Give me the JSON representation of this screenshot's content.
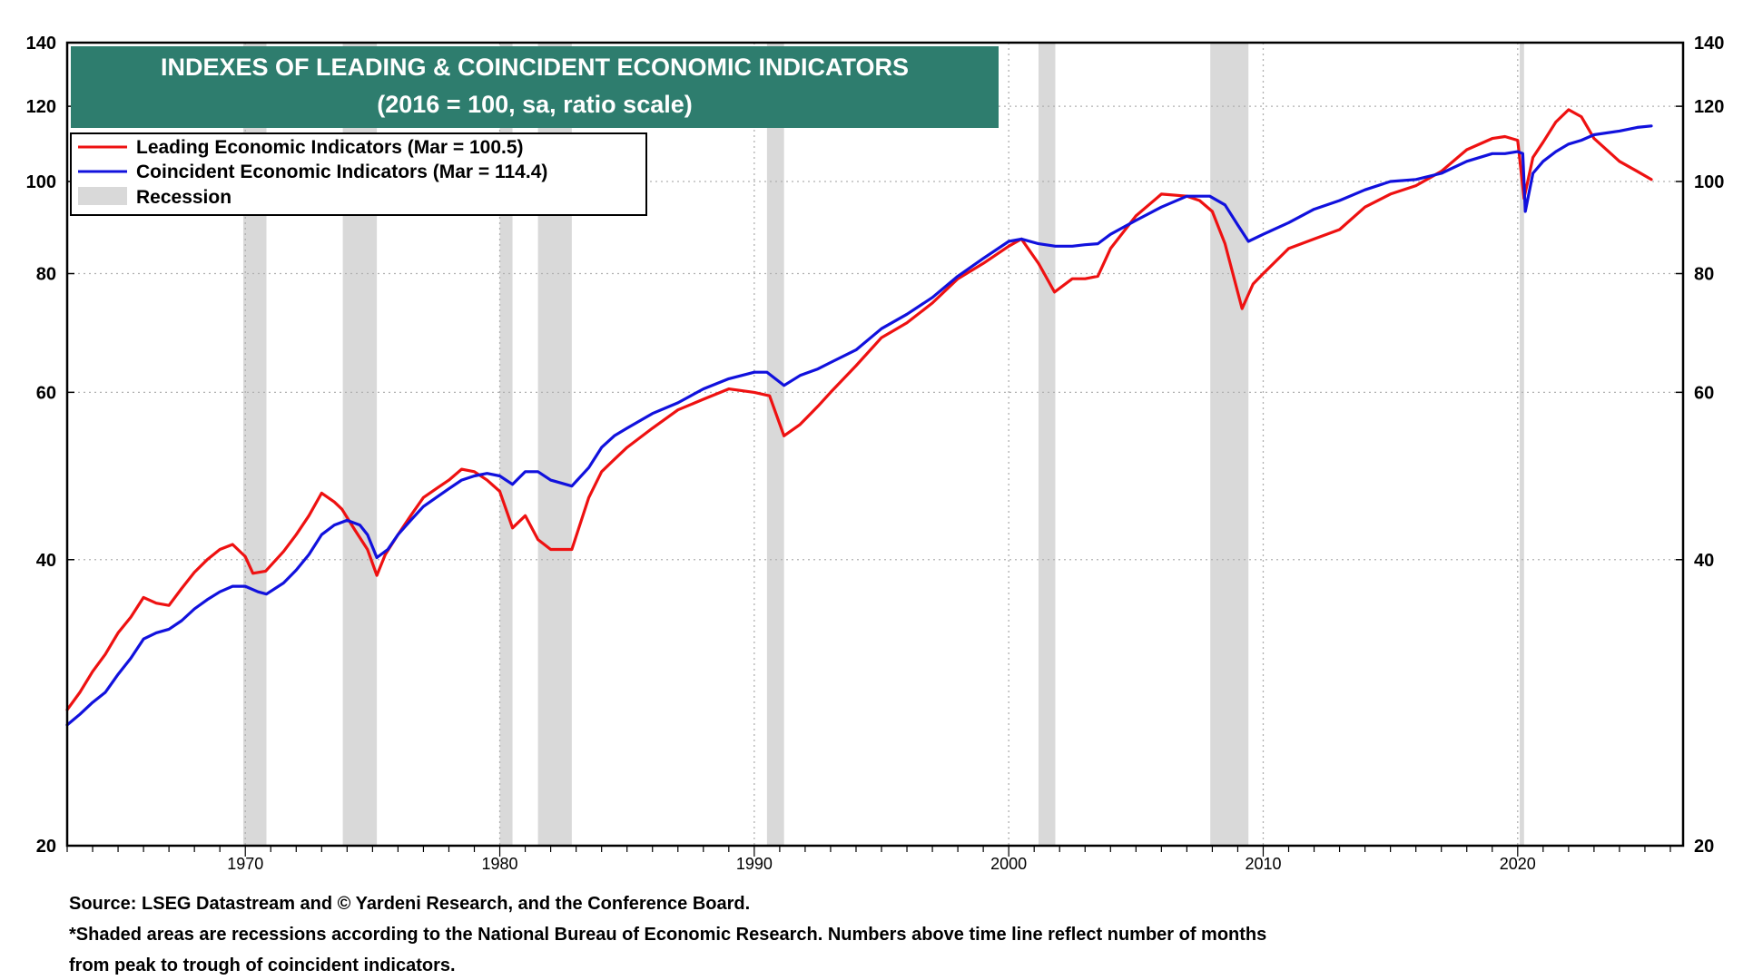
{
  "chart_data": {
    "type": "line",
    "title": "INDEXES OF LEADING & COINCIDENT ECONOMIC INDICATORS",
    "subtitle": "(2016 = 100, sa, ratio scale)",
    "y_scale": "log",
    "ylim": [
      20,
      140
    ],
    "xlim": [
      1963.0,
      2026.5
    ],
    "y_ticks": [
      20,
      40,
      60,
      80,
      100,
      120,
      140
    ],
    "x_ticks": [
      1970,
      1980,
      1990,
      2000,
      2010,
      2020
    ],
    "grid": true,
    "legend_position": "top-left",
    "legend": [
      {
        "label": "Leading Economic Indicators (Mar = 100.5)",
        "color": "#ee1111"
      },
      {
        "label": "Coincident Economic Indicators (Mar = 114.4)",
        "color": "#1111dd"
      },
      {
        "label": "Recession",
        "color": "#d9d9d9"
      }
    ],
    "recessions": [
      [
        1969.92,
        1970.83
      ],
      [
        1973.83,
        1975.17
      ],
      [
        1980.0,
        1980.5
      ],
      [
        1981.5,
        1982.83
      ],
      [
        1990.5,
        1991.17
      ],
      [
        2001.17,
        2001.83
      ],
      [
        2007.92,
        2009.42
      ],
      [
        2020.08,
        2020.25
      ]
    ],
    "series": [
      {
        "name": "Leading Economic Indicators",
        "color": "#ee1111",
        "x": [
          1963.0,
          1963.5,
          1964.0,
          1964.5,
          1965.0,
          1965.5,
          1966.0,
          1966.5,
          1967.0,
          1967.5,
          1968.0,
          1968.5,
          1969.0,
          1969.5,
          1970.0,
          1970.3,
          1970.8,
          1971.5,
          1972.0,
          1972.5,
          1973.0,
          1973.5,
          1973.8,
          1974.3,
          1974.8,
          1975.17,
          1975.5,
          1976.0,
          1976.5,
          1977.0,
          1977.5,
          1978.0,
          1978.5,
          1979.0,
          1979.5,
          1980.0,
          1980.5,
          1981.0,
          1981.5,
          1982.0,
          1982.83,
          1983.5,
          1984.0,
          1984.5,
          1985.0,
          1986.0,
          1987.0,
          1988.0,
          1989.0,
          1990.0,
          1990.6,
          1991.17,
          1991.8,
          1992.5,
          1993.0,
          1994.0,
          1995.0,
          1996.0,
          1997.0,
          1998.0,
          1999.0,
          2000.0,
          2000.5,
          2001.17,
          2001.8,
          2002.5,
          2003.0,
          2003.5,
          2004.0,
          2005.0,
          2006.0,
          2007.0,
          2007.5,
          2008.0,
          2008.5,
          2009.17,
          2009.6,
          2010.0,
          2011.0,
          2012.0,
          2013.0,
          2014.0,
          2015.0,
          2016.0,
          2017.0,
          2018.0,
          2019.0,
          2019.5,
          2020.0,
          2020.25,
          2020.6,
          2021.0,
          2021.5,
          2022.0,
          2022.5,
          2023.0,
          2024.0,
          2024.7,
          2025.25
        ],
        "values": [
          27.8,
          29.0,
          30.5,
          31.8,
          33.5,
          34.8,
          36.5,
          36.0,
          35.8,
          37.3,
          38.8,
          40.0,
          41.0,
          41.5,
          40.3,
          38.7,
          38.9,
          40.8,
          42.5,
          44.5,
          47.0,
          46.0,
          45.2,
          43.0,
          41.0,
          38.5,
          40.5,
          42.5,
          44.5,
          46.5,
          47.5,
          48.5,
          49.8,
          49.5,
          48.5,
          47.2,
          43.2,
          44.5,
          42.0,
          41.0,
          41.0,
          46.5,
          49.5,
          51.0,
          52.5,
          55.0,
          57.5,
          59.0,
          60.5,
          60.0,
          59.5,
          54.0,
          55.5,
          58.0,
          60.0,
          64.0,
          68.5,
          71.0,
          74.5,
          79.0,
          82.0,
          85.5,
          87.0,
          82.0,
          76.5,
          79.0,
          79.0,
          79.5,
          85.0,
          92.0,
          97.0,
          96.5,
          95.5,
          93.0,
          86.0,
          73.5,
          78.0,
          80.0,
          85.0,
          87.0,
          89.0,
          94.0,
          97.0,
          99.0,
          102.5,
          108.0,
          111.0,
          111.5,
          110.5,
          96.0,
          106.0,
          110.0,
          115.5,
          119.0,
          117.0,
          111.0,
          105.0,
          102.5,
          100.5
        ]
      },
      {
        "name": "Coincident Economic Indicators",
        "color": "#1111dd",
        "x": [
          1963.0,
          1963.5,
          1964.0,
          1964.5,
          1965.0,
          1965.5,
          1966.0,
          1966.5,
          1967.0,
          1967.5,
          1968.0,
          1968.5,
          1969.0,
          1969.5,
          1970.0,
          1970.5,
          1970.83,
          1971.5,
          1972.0,
          1972.5,
          1973.0,
          1973.5,
          1974.0,
          1974.5,
          1974.8,
          1975.17,
          1975.6,
          1976.0,
          1976.5,
          1977.0,
          1977.5,
          1978.0,
          1978.5,
          1979.0,
          1979.5,
          1980.0,
          1980.5,
          1981.0,
          1981.5,
          1982.0,
          1982.83,
          1983.5,
          1984.0,
          1984.5,
          1985.0,
          1986.0,
          1987.0,
          1988.0,
          1989.0,
          1990.0,
          1990.5,
          1991.17,
          1991.8,
          1992.5,
          1993.0,
          1994.0,
          1995.0,
          1996.0,
          1997.0,
          1998.0,
          1999.0,
          2000.0,
          2000.5,
          2001.17,
          2001.83,
          2002.5,
          2003.0,
          2003.5,
          2004.0,
          2005.0,
          2006.0,
          2007.0,
          2007.9,
          2008.5,
          2009.0,
          2009.42,
          2010.0,
          2011.0,
          2012.0,
          2013.0,
          2014.0,
          2015.0,
          2016.0,
          2017.0,
          2018.0,
          2019.0,
          2019.5,
          2020.0,
          2020.2,
          2020.3,
          2020.6,
          2021.0,
          2021.5,
          2022.0,
          2022.5,
          2023.0,
          2024.0,
          2024.7,
          2025.25
        ],
        "values": [
          26.8,
          27.5,
          28.3,
          29.0,
          30.3,
          31.5,
          33.0,
          33.5,
          33.8,
          34.5,
          35.5,
          36.3,
          37.0,
          37.5,
          37.5,
          37.0,
          36.8,
          37.8,
          39.0,
          40.5,
          42.5,
          43.5,
          44.0,
          43.5,
          42.5,
          40.2,
          41.0,
          42.5,
          44.0,
          45.5,
          46.5,
          47.5,
          48.5,
          49.0,
          49.3,
          49.0,
          48.0,
          49.5,
          49.5,
          48.5,
          47.8,
          50.0,
          52.5,
          54.0,
          55.0,
          57.0,
          58.5,
          60.5,
          62.0,
          63.0,
          63.0,
          61.0,
          62.5,
          63.5,
          64.5,
          66.5,
          70.0,
          72.5,
          75.5,
          79.5,
          83.0,
          86.5,
          87.0,
          86.0,
          85.5,
          85.5,
          85.8,
          86.0,
          88.0,
          91.0,
          94.0,
          96.5,
          96.5,
          94.5,
          90.0,
          86.5,
          88.0,
          90.5,
          93.5,
          95.5,
          98.0,
          100.0,
          100.5,
          102.0,
          105.0,
          107.0,
          107.0,
          107.5,
          107.0,
          93.0,
          102.0,
          105.0,
          107.5,
          109.5,
          110.5,
          112.0,
          113.0,
          114.0,
          114.4
        ]
      }
    ]
  },
  "footnotes": {
    "source": "Source: LSEG Datastream and © Yardeni Research, and the Conference Board.",
    "note_line1": "*Shaded areas are recessions according to the National Bureau of Economic Research. Numbers above time line reflect number of months",
    "note_line2": "from peak to trough of coincident indicators."
  }
}
